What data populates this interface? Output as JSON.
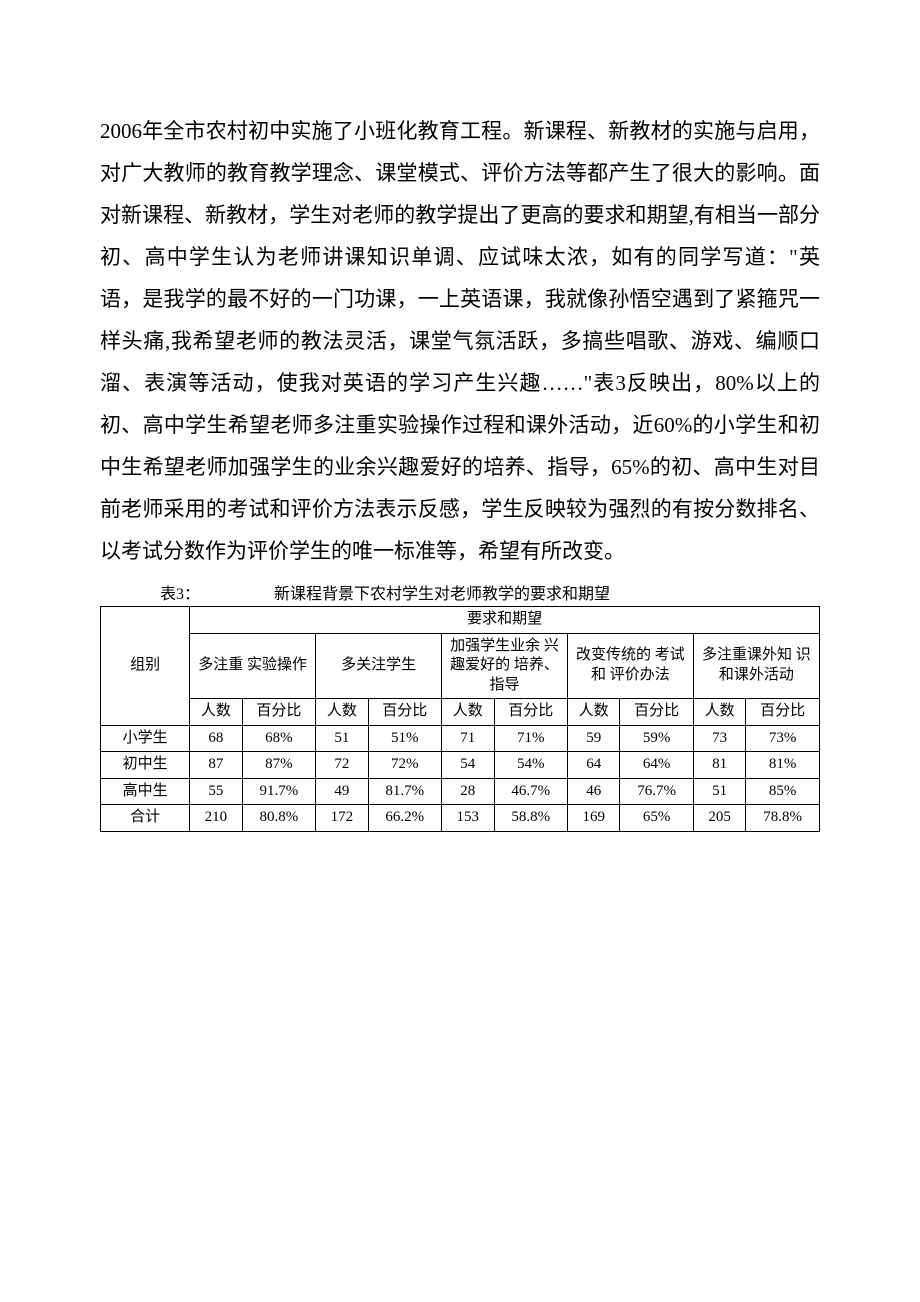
{
  "paragraph": "2006年全市农村初中实施了小班化教育工程。新课程、新教材的实施与启用，对广大教师的教育教学理念、课堂模式、评价方法等都产生了很大的影响。面对新课程、新教材，学生对老师的教学提出了更高的要求和期望,有相当一部分初、高中学生认为老师讲课知识单调、应试味太浓，如有的同学写道：\"英语，是我学的最不好的一门功课，一上英语课，我就像孙悟空遇到了紧箍咒一样头痛,我希望老师的教法灵活，课堂气氛活跃，多搞些唱歌、游戏、编顺口溜、表演等活动，使我对英语的学习产生兴趣……\"表3反映出，80%以上的初、高中学生希望老师多注重实验操作过程和课外活动，近60%的小学生和初中生希望老师加强学生的业余兴趣爱好的培养、指导，65%的初、高中生对目前老师采用的考试和评价方法表示反感，学生反映较为强烈的有按分数排名、以考试分数作为评价学生的唯一标准等，希望有所改变。",
  "table": {
    "caption_label": "表3：",
    "caption_title": "新课程背景下农村学生对老师教学的要求和期望",
    "row_header": "组别",
    "main_header": "要求和期望",
    "sub_count": "人数",
    "sub_pct": "百分比",
    "categories": [
      "多注重\n实验操作",
      "多关注学生",
      "加强学生业余\n兴趣爱好的\n培养、指导",
      "改变传统的\n考试和\n评价办法",
      "多注重课外知\n识和课外活动"
    ],
    "rows": [
      {
        "label": "小学生",
        "cells": [
          "68",
          "68%",
          "51",
          "51%",
          "71",
          "71%",
          "59",
          "59%",
          "73",
          "73%"
        ]
      },
      {
        "label": "初中生",
        "cells": [
          "87",
          "87%",
          "72",
          "72%",
          "54",
          "54%",
          "64",
          "64%",
          "81",
          "81%"
        ]
      },
      {
        "label": "高中生",
        "cells": [
          "55",
          "91.7%",
          "49",
          "81.7%",
          "28",
          "46.7%",
          "46",
          "76.7%",
          "51",
          "85%"
        ]
      },
      {
        "label": "合计",
        "cells": [
          "210",
          "80.8%",
          "172",
          "66.2%",
          "153",
          "58.8%",
          "169",
          "65%",
          "205",
          "78.8%"
        ]
      }
    ]
  }
}
